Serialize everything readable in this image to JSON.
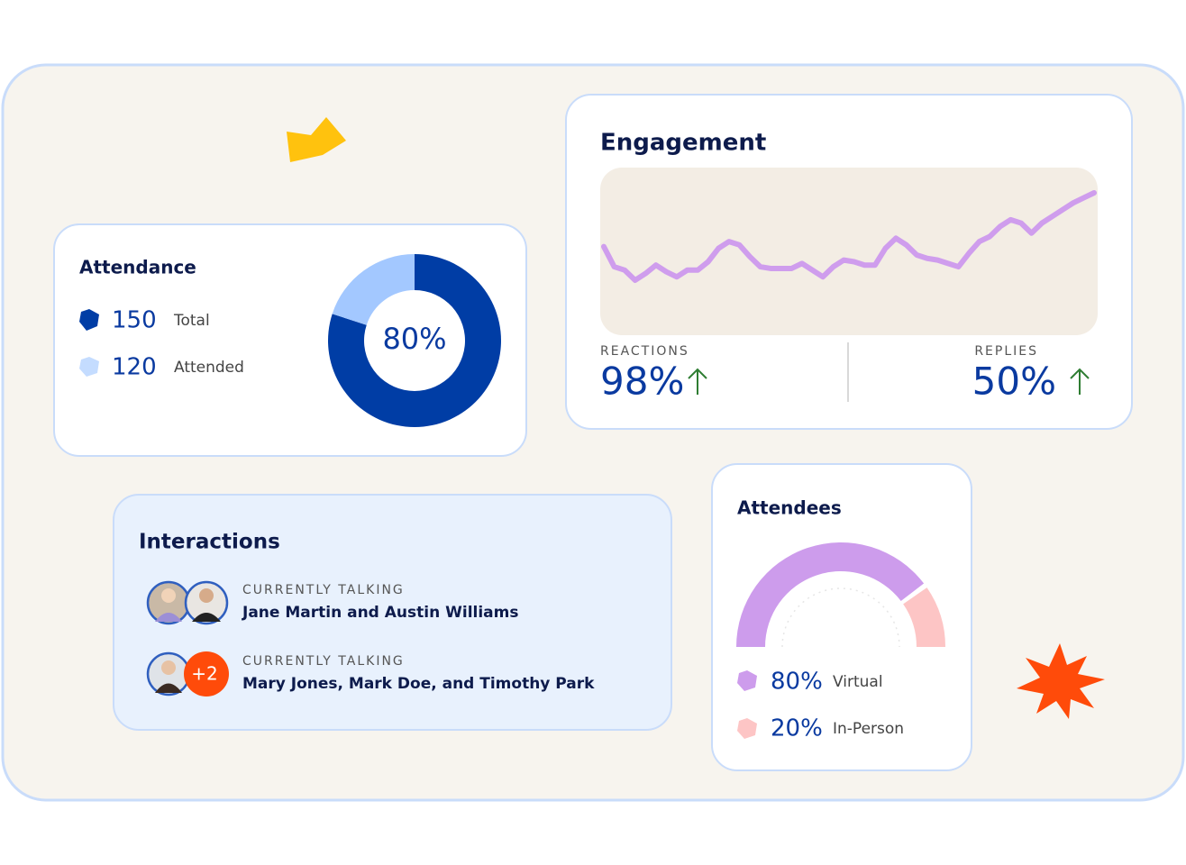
{
  "attendance": {
    "title": "Attendance",
    "legend": [
      {
        "value": 150,
        "label": "Total"
      },
      {
        "value": 120,
        "label": "Attended"
      }
    ],
    "center_label": "80%",
    "colors": [
      "#003da5",
      "#a3c8ff"
    ]
  },
  "engagement": {
    "title": "Engagement",
    "line": {
      "type": "line",
      "color": "#cf9ded",
      "values": [
        53,
        41,
        39,
        33,
        37,
        42,
        38,
        35,
        39,
        39,
        44,
        52,
        56,
        54,
        47,
        41,
        40,
        40,
        40,
        43,
        39,
        35,
        41,
        45,
        44,
        42,
        42,
        52,
        58,
        54,
        48,
        46,
        45,
        43,
        41,
        49,
        56,
        59,
        65,
        69,
        67,
        61,
        67,
        71,
        75,
        79,
        82,
        85
      ]
    },
    "stats": [
      {
        "label": "REACTIONS",
        "value_label": "98%"
      },
      {
        "label": "REPLIES",
        "value_label": "50%"
      }
    ]
  },
  "interactions": {
    "title": "Interactions",
    "rows": [
      {
        "status": "CURRENTLY TALKING",
        "names": "Jane Martin and Austin Williams"
      },
      {
        "status": "CURRENTLY TALKING",
        "names": "Mary Jones, Mark Doe, and Timothy Park",
        "extra": "+2"
      }
    ]
  },
  "attendees": {
    "title": "Attendees",
    "type": "gauge",
    "values": [
      80,
      20
    ],
    "value_labels": [
      "80%",
      "20%"
    ],
    "labels": [
      "Virtual",
      "In-Person"
    ],
    "colors": [
      "#cd9cec",
      "#fdc5c5"
    ]
  }
}
